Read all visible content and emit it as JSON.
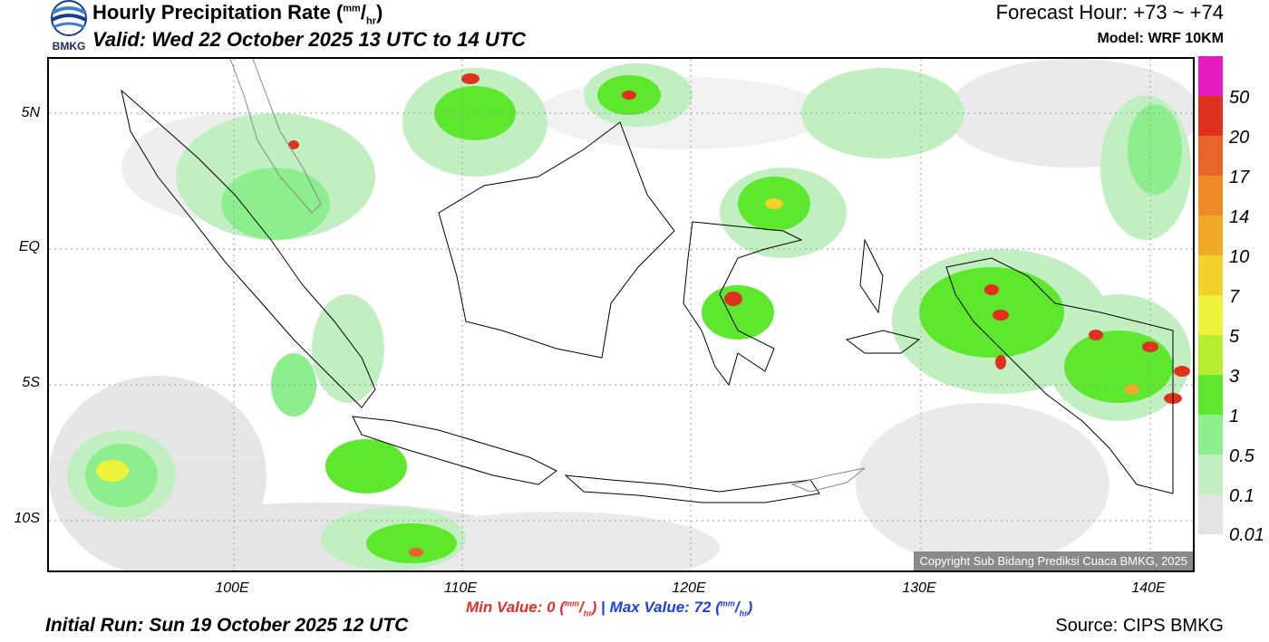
{
  "header": {
    "title_main": "Hourly Precipitation Rate (",
    "title_unit_sup": "mm",
    "title_unit_sep": "/",
    "title_unit_sub": "hr",
    "title_close": ")",
    "valid": "Valid: Wed 22 October 2025 13 UTC to 14 UTC",
    "forecast_hour": "Forecast Hour: +73 ~ +74",
    "model": "Model: WRF 10KM",
    "logo_text": "BMKG"
  },
  "axes": {
    "y_labels": [
      "5N",
      "EQ",
      "5S",
      "10S"
    ],
    "x_labels": [
      "100E",
      "110E",
      "120E",
      "130E",
      "140E"
    ]
  },
  "legend": {
    "labels": [
      "50",
      "20",
      "17",
      "14",
      "10",
      "7",
      "5",
      "3",
      "1",
      "0.5",
      "0.1",
      "0.01"
    ],
    "colors": [
      "#e51bbf",
      "#e0301e",
      "#e9642a",
      "#ef8a27",
      "#f0aa28",
      "#f2d12a",
      "#edf23b",
      "#b8ee32",
      "#5de72d",
      "#8cee8c",
      "#c1efc1",
      "#e3e3e3"
    ]
  },
  "copyright": "Copyright Sub Bidang Prediksi Cuaca BMKG, 2025",
  "footer": {
    "min_label": "Min Value:",
    "min_value": "0",
    "separator": "|",
    "max_label": "Max Value:",
    "max_value": "72",
    "unit_sup": "mm",
    "unit_sub": "hr",
    "initial_run": "Initial Run: Sun 19 October 2025 12 UTC",
    "source": "Source: CIPS BMKG"
  },
  "colors": {
    "min_color": "#e0302a",
    "max_color": "#1f3fe0",
    "coast": "#000000",
    "graticule": "#9a9a9a"
  }
}
